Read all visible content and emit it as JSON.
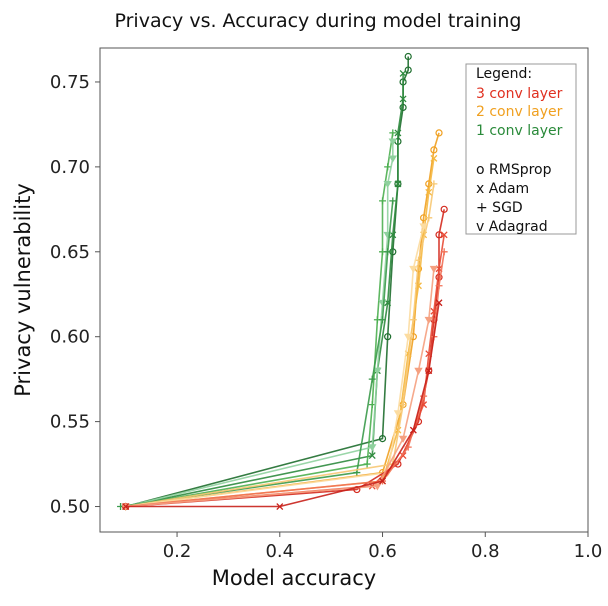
{
  "chart_data": {
    "type": "line",
    "title": "Privacy vs. Accuracy during model training",
    "xlabel": "Model accuracy",
    "ylabel": "Privacy vulnerability",
    "xlim": [
      0.05,
      1.0
    ],
    "ylim": [
      0.485,
      0.77
    ],
    "xticks": [
      "0.2",
      "0.4",
      "0.6",
      "0.8",
      "1.0"
    ],
    "xtick_values": [
      0.2,
      0.4,
      0.6,
      0.8,
      1.0
    ],
    "yticks": [
      "0.50",
      "0.55",
      "0.60",
      "0.65",
      "0.70",
      "0.75"
    ],
    "ytick_values": [
      0.5,
      0.55,
      0.6,
      0.65,
      0.7,
      0.75
    ],
    "grid": false,
    "legend": {
      "placement": "top-right",
      "title": "Legend:",
      "layers": [
        {
          "label": "3 conv layer",
          "color": "#e03020"
        },
        {
          "label": "2 conv layer",
          "color": "#f0a020"
        },
        {
          "label": "1 conv layer",
          "color": "#2a8a3a"
        }
      ],
      "optimizers": [
        {
          "label": "o  RMSprop",
          "marker": "o"
        },
        {
          "label": "x  Adam",
          "marker": "x"
        },
        {
          "label": "+  SGD",
          "marker": "+"
        },
        {
          "label": "v  Adagrad",
          "marker": "v"
        }
      ]
    },
    "series": [
      {
        "layer": "1 conv layer",
        "color": "#1e6e2e",
        "marker": "o",
        "x": [
          0.1,
          0.6,
          0.61,
          0.62,
          0.63,
          0.63,
          0.64,
          0.64,
          0.65,
          0.65
        ],
        "y": [
          0.5,
          0.54,
          0.6,
          0.65,
          0.69,
          0.715,
          0.735,
          0.75,
          0.757,
          0.765
        ]
      },
      {
        "layer": "1 conv layer",
        "color": "#2e8b3e",
        "marker": "x",
        "x": [
          0.1,
          0.58,
          0.59,
          0.61,
          0.62,
          0.63,
          0.63,
          0.64,
          0.64
        ],
        "y": [
          0.5,
          0.53,
          0.58,
          0.62,
          0.66,
          0.69,
          0.72,
          0.74,
          0.755
        ]
      },
      {
        "layer": "1 conv layer",
        "color": "#4caf50",
        "marker": "+",
        "x": [
          0.1,
          0.57,
          0.58,
          0.59,
          0.6,
          0.6,
          0.61,
          0.62
        ],
        "y": [
          0.5,
          0.525,
          0.56,
          0.61,
          0.65,
          0.68,
          0.7,
          0.72
        ]
      },
      {
        "layer": "1 conv layer",
        "color": "#8fd19e",
        "marker": "v",
        "x": [
          0.1,
          0.58,
          0.59,
          0.6,
          0.61,
          0.61,
          0.62,
          0.62
        ],
        "y": [
          0.5,
          0.535,
          0.58,
          0.62,
          0.66,
          0.69,
          0.705,
          0.715
        ]
      },
      {
        "layer": "1 conv layer",
        "color": "#3a9a4a",
        "marker": "+",
        "x": [
          0.09,
          0.55,
          0.58,
          0.6,
          0.61,
          0.62
        ],
        "y": [
          0.5,
          0.52,
          0.575,
          0.61,
          0.65,
          0.68
        ]
      },
      {
        "layer": "2 conv layer",
        "color": "#f0a020",
        "marker": "o",
        "x": [
          0.1,
          0.6,
          0.64,
          0.66,
          0.67,
          0.68,
          0.69,
          0.7,
          0.71
        ],
        "y": [
          0.5,
          0.52,
          0.56,
          0.6,
          0.64,
          0.67,
          0.69,
          0.71,
          0.72
        ]
      },
      {
        "layer": "2 conv layer",
        "color": "#f5b840",
        "marker": "x",
        "x": [
          0.1,
          0.6,
          0.63,
          0.65,
          0.67,
          0.68,
          0.69,
          0.7
        ],
        "y": [
          0.5,
          0.515,
          0.545,
          0.59,
          0.63,
          0.66,
          0.685,
          0.705
        ]
      },
      {
        "layer": "2 conv layer",
        "color": "#f7c873",
        "marker": "+",
        "x": [
          0.1,
          0.62,
          0.64,
          0.66,
          0.67,
          0.69,
          0.7
        ],
        "y": [
          0.5,
          0.525,
          0.56,
          0.61,
          0.645,
          0.67,
          0.69
        ]
      },
      {
        "layer": "2 conv layer",
        "color": "#fcdca0",
        "marker": "v",
        "x": [
          0.1,
          0.61,
          0.63,
          0.65,
          0.66,
          0.68
        ],
        "y": [
          0.5,
          0.52,
          0.555,
          0.6,
          0.64,
          0.665
        ]
      },
      {
        "layer": "3 conv layer",
        "color": "#d42a1e",
        "marker": "o",
        "x": [
          0.1,
          0.55,
          0.63,
          0.67,
          0.69,
          0.7,
          0.71,
          0.71,
          0.72
        ],
        "y": [
          0.5,
          0.51,
          0.525,
          0.55,
          0.58,
          0.61,
          0.635,
          0.66,
          0.675
        ]
      },
      {
        "layer": "3 conv layer",
        "color": "#e84a35",
        "marker": "x",
        "x": [
          0.1,
          0.58,
          0.64,
          0.68,
          0.69,
          0.7,
          0.71,
          0.72
        ],
        "y": [
          0.5,
          0.512,
          0.53,
          0.56,
          0.59,
          0.615,
          0.64,
          0.66
        ]
      },
      {
        "layer": "3 conv layer",
        "color": "#f27056",
        "marker": "+",
        "x": [
          0.1,
          0.6,
          0.65,
          0.68,
          0.7,
          0.71,
          0.72
        ],
        "y": [
          0.5,
          0.515,
          0.535,
          0.565,
          0.6,
          0.63,
          0.65
        ]
      },
      {
        "layer": "3 conv layer",
        "color": "#f5a080",
        "marker": "v",
        "x": [
          0.1,
          0.59,
          0.64,
          0.67,
          0.69,
          0.7
        ],
        "y": [
          0.5,
          0.512,
          0.54,
          0.58,
          0.61,
          0.64
        ]
      },
      {
        "layer": "3 conv layer",
        "color": "#c8201a",
        "marker": "x",
        "x": [
          0.1,
          0.4,
          0.6,
          0.66,
          0.69,
          0.71
        ],
        "y": [
          0.5,
          0.5,
          0.515,
          0.545,
          0.58,
          0.62
        ]
      }
    ]
  }
}
